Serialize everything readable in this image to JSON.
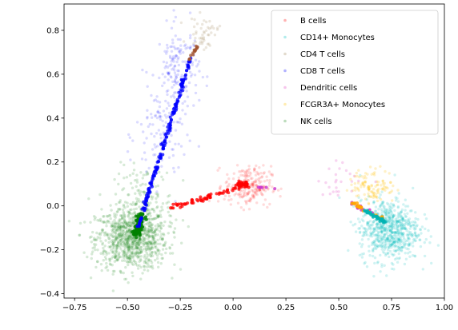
{
  "chart_data": {
    "type": "scatter",
    "title": "",
    "xlabel": "",
    "ylabel": "",
    "xlim": [
      -0.8,
      1.0
    ],
    "ylim": [
      -0.42,
      0.92
    ],
    "xticks": [
      -0.75,
      -0.5,
      -0.25,
      0.0,
      0.25,
      0.5,
      0.75,
      1.0
    ],
    "xtick_labels": [
      "−0.75",
      "−0.50",
      "−0.25",
      "0.00",
      "0.25",
      "0.50",
      "0.75",
      "1.00"
    ],
    "yticks": [
      -0.4,
      -0.2,
      0.0,
      0.2,
      0.4,
      0.6,
      0.8
    ],
    "ytick_labels": [
      "−0.4",
      "−0.2",
      "0.0",
      "0.2",
      "0.4",
      "0.6",
      "0.8"
    ],
    "legend_position": "top-right",
    "legend": [
      {
        "name": "B cells",
        "color": "#ff0000"
      },
      {
        "name": "CD14+ Monocytes",
        "color": "#00bfbf"
      },
      {
        "name": "CD4 T cells",
        "color": "#a0855b"
      },
      {
        "name": "CD8 T cells",
        "color": "#0000ff"
      },
      {
        "name": "Dendritic cells",
        "color": "#e040c0"
      },
      {
        "name": "FCGR3A+ Monocytes",
        "color": "#ffc000"
      },
      {
        "name": "NK cells",
        "color": "#228b22"
      }
    ],
    "clouds": [
      {
        "name": "NK cells",
        "color": "#228b22",
        "opacity": 0.18,
        "n": 950,
        "cx": -0.48,
        "cy": -0.15,
        "sx": 0.085,
        "sy": 0.07
      },
      {
        "name": "NK cells",
        "color": "#228b22",
        "opacity": 0.18,
        "n": 150,
        "cx": -0.42,
        "cy": 0.02,
        "sx": 0.07,
        "sy": 0.08
      },
      {
        "name": "CD8 T cells",
        "color": "#0000ff",
        "opacity": 0.14,
        "n": 160,
        "cx": -0.26,
        "cy": 0.62,
        "sx": 0.05,
        "sy": 0.1
      },
      {
        "name": "CD8 T cells",
        "color": "#0000ff",
        "opacity": 0.14,
        "n": 120,
        "cx": -0.34,
        "cy": 0.32,
        "sx": 0.06,
        "sy": 0.12
      },
      {
        "name": "CD4 T cells",
        "color": "#a0855b",
        "opacity": 0.2,
        "n": 50,
        "cx": -0.14,
        "cy": 0.79,
        "sx": 0.035,
        "sy": 0.035
      },
      {
        "name": "B cells",
        "color": "#ff0000",
        "opacity": 0.14,
        "n": 230,
        "cx": 0.07,
        "cy": 0.09,
        "sx": 0.055,
        "sy": 0.045
      },
      {
        "name": "CD14+ Monocytes",
        "color": "#00bfbf",
        "opacity": 0.18,
        "n": 700,
        "cx": 0.74,
        "cy": -0.11,
        "sx": 0.07,
        "sy": 0.07
      },
      {
        "name": "FCGR3A+ Monocytes",
        "color": "#ffc000",
        "opacity": 0.22,
        "n": 110,
        "cx": 0.66,
        "cy": 0.09,
        "sx": 0.055,
        "sy": 0.04
      },
      {
        "name": "Dendritic cells",
        "color": "#e040c0",
        "opacity": 0.22,
        "n": 25,
        "cx": 0.52,
        "cy": 0.12,
        "sx": 0.06,
        "sy": 0.04
      }
    ],
    "trajectories": [
      {
        "name": "NK cells",
        "color": "#008000",
        "opacity": 0.85,
        "n": 130,
        "from": [
          -0.46,
          -0.13
        ],
        "to": [
          -0.43,
          -0.04
        ],
        "jitter": 0.008
      },
      {
        "name": "CD8 T cells",
        "color": "#0000ff",
        "opacity": 0.75,
        "n": 190,
        "from": [
          -0.45,
          -0.1
        ],
        "to": [
          -0.2,
          0.68
        ],
        "jitter": 0.004
      },
      {
        "name": "CD4 T cells",
        "color": "#a0522d",
        "opacity": 0.75,
        "n": 15,
        "from": [
          -0.21,
          0.66
        ],
        "to": [
          -0.17,
          0.73
        ],
        "jitter": 0.003
      },
      {
        "name": "B cells",
        "color": "#ff0000",
        "opacity": 0.75,
        "n": 70,
        "from": [
          -0.3,
          -0.01
        ],
        "to": [
          0.08,
          0.1
        ],
        "jitter": 0.005
      },
      {
        "name": "B cells",
        "color": "#ff0000",
        "opacity": 0.75,
        "n": 30,
        "from": [
          0.02,
          0.1
        ],
        "to": [
          0.07,
          0.095
        ],
        "jitter": 0.005
      },
      {
        "name": "Dendritic cells",
        "color": "#cc33cc",
        "opacity": 0.8,
        "n": 6,
        "from": [
          0.12,
          0.085
        ],
        "to": [
          0.2,
          0.08
        ],
        "jitter": 0.002
      },
      {
        "name": "Dendritic cells",
        "color": "#cc33cc",
        "opacity": 0.8,
        "n": 12,
        "from": [
          0.55,
          0.01
        ],
        "to": [
          0.66,
          -0.03
        ],
        "jitter": 0.004
      },
      {
        "name": "FCGR3A+ Monocytes",
        "color": "#ffa500",
        "opacity": 0.8,
        "n": 30,
        "from": [
          0.56,
          0.015
        ],
        "to": [
          0.71,
          -0.06
        ],
        "jitter": 0.004
      },
      {
        "name": "CD14+ Monocytes",
        "color": "#00b3b3",
        "opacity": 0.8,
        "n": 40,
        "from": [
          0.62,
          -0.02
        ],
        "to": [
          0.72,
          -0.075
        ],
        "jitter": 0.004
      }
    ]
  }
}
